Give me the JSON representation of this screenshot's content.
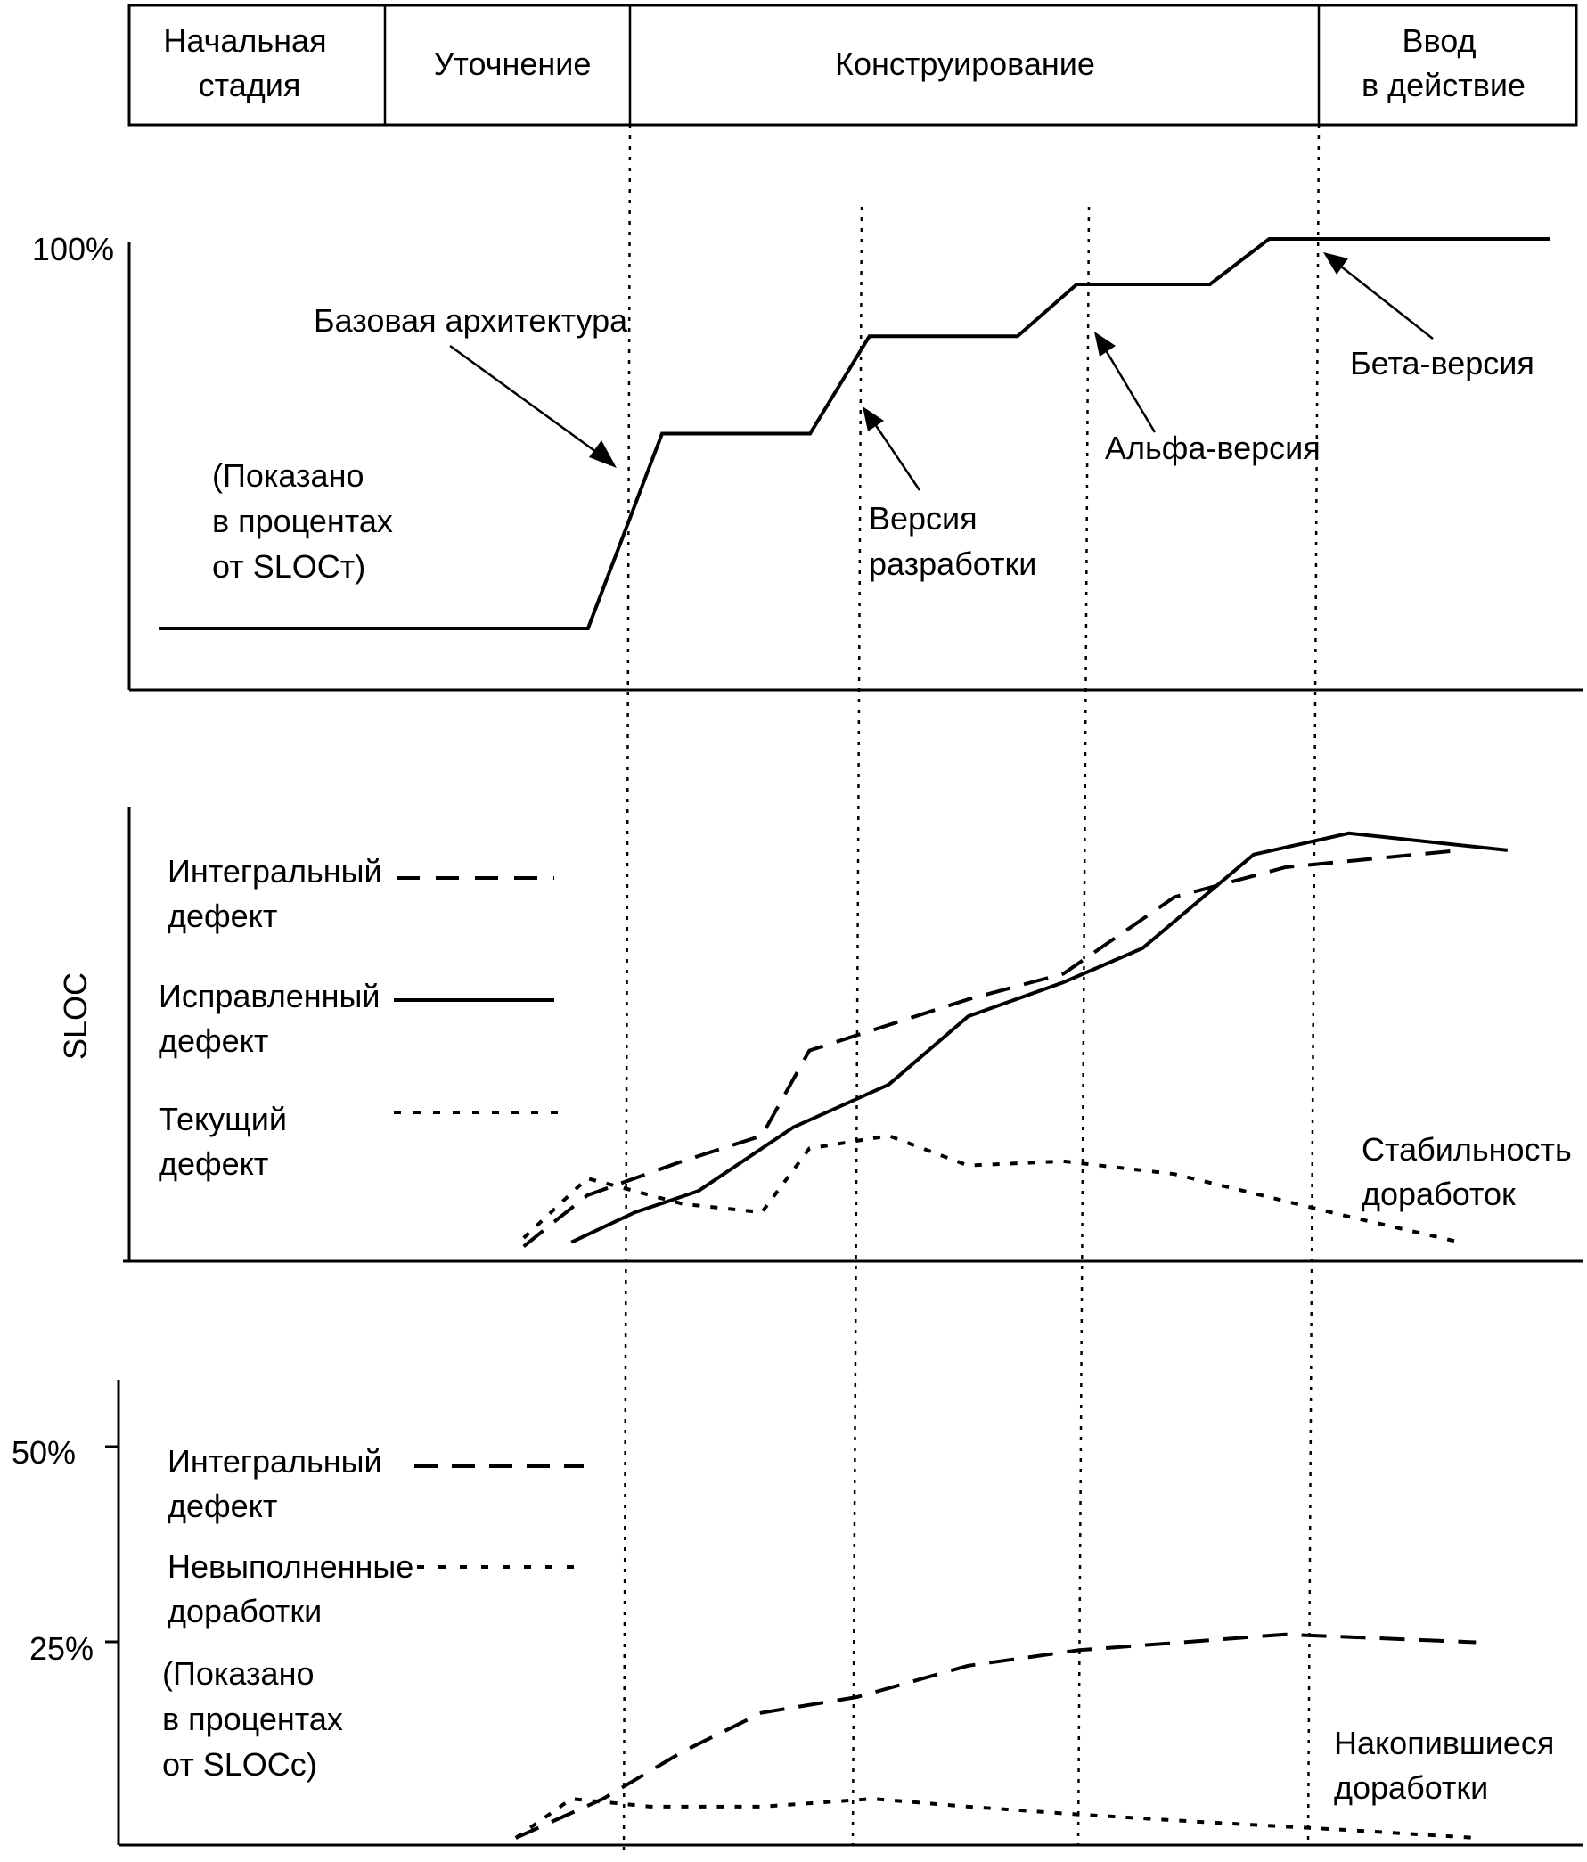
{
  "phases": [
    {
      "lines": [
        "Начальная",
        "стадия"
      ]
    },
    {
      "lines": [
        "Уточнение"
      ]
    },
    {
      "lines": [
        "Конструирование"
      ]
    },
    {
      "lines": [
        "Ввод",
        "в действие"
      ]
    }
  ],
  "chart_data": [
    {
      "type": "line",
      "title": "",
      "yticks": [
        "100%"
      ],
      "note": [
        "(Показано",
        "в процентах",
        "от SLOCт)"
      ],
      "series": [
        {
          "values": [
            [
              0.0,
              40
            ],
            [
              0.29,
              40
            ],
            [
              0.34,
              70
            ],
            [
              0.44,
              70
            ],
            [
              0.48,
              85
            ],
            [
              0.58,
              85
            ],
            [
              0.62,
              93
            ],
            [
              0.71,
              93
            ],
            [
              0.75,
              100
            ],
            [
              0.94,
              100
            ]
          ]
        }
      ],
      "annotations": [
        {
          "lines": [
            "Базовая архитектура"
          ]
        },
        {
          "lines": [
            "Версия",
            "разработки"
          ]
        },
        {
          "lines": [
            "Альфа-версия"
          ]
        },
        {
          "lines": [
            "Бета-версия"
          ]
        }
      ]
    },
    {
      "type": "line",
      "ylabel": "SLOC",
      "legend": [
        {
          "lines": [
            "Интегральный",
            "дефект"
          ],
          "style": "dashed"
        },
        {
          "lines": [
            "Исправленный",
            "дефект"
          ],
          "style": "solid"
        },
        {
          "lines": [
            "Текущий",
            "дефект"
          ],
          "style": "dotted"
        }
      ],
      "series": [
        {
          "style": "dashed",
          "values": [
            [
              0.33,
              2
            ],
            [
              0.37,
              14
            ],
            [
              0.43,
              22
            ],
            [
              0.48,
              28
            ],
            [
              0.51,
              48
            ],
            [
              0.56,
              54
            ],
            [
              0.61,
              60
            ],
            [
              0.67,
              66
            ],
            [
              0.74,
              84
            ],
            [
              0.81,
              91
            ],
            [
              0.92,
              95
            ]
          ]
        },
        {
          "style": "solid",
          "values": [
            [
              0.36,
              3
            ],
            [
              0.4,
              10
            ],
            [
              0.44,
              15
            ],
            [
              0.5,
              30
            ],
            [
              0.56,
              40
            ],
            [
              0.61,
              56
            ],
            [
              0.67,
              64
            ],
            [
              0.72,
              72
            ],
            [
              0.79,
              94
            ],
            [
              0.85,
              99
            ],
            [
              0.95,
              95
            ]
          ]
        },
        {
          "style": "dotted",
          "values": [
            [
              0.33,
              4
            ],
            [
              0.37,
              18
            ],
            [
              0.43,
              12
            ],
            [
              0.48,
              10
            ],
            [
              0.51,
              25
            ],
            [
              0.56,
              28
            ],
            [
              0.61,
              21
            ],
            [
              0.67,
              22
            ],
            [
              0.74,
              19
            ],
            [
              0.85,
              9
            ],
            [
              0.92,
              3
            ]
          ]
        }
      ],
      "annotations": [
        {
          "lines": [
            "Стабильность",
            "доработок"
          ]
        }
      ]
    },
    {
      "type": "line",
      "yticks": [
        "50%",
        "25%"
      ],
      "legend": [
        {
          "lines": [
            "Интегральный",
            "дефект"
          ],
          "style": "dashed"
        },
        {
          "lines": [
            "Невыполненные",
            "доработки"
          ],
          "style": "dotted"
        }
      ],
      "note": [
        "(Показано",
        "в процентах",
        "от SLOCс)"
      ],
      "series": [
        {
          "style": "dashed",
          "values": [
            [
              0.325,
              0
            ],
            [
              0.38,
              5
            ],
            [
              0.43,
              11
            ],
            [
              0.48,
              16
            ],
            [
              0.54,
              18
            ],
            [
              0.61,
              22
            ],
            [
              0.68,
              24
            ],
            [
              0.81,
              26
            ],
            [
              0.93,
              25
            ]
          ]
        },
        {
          "style": "dotted",
          "values": [
            [
              0.325,
              0
            ],
            [
              0.36,
              5
            ],
            [
              0.41,
              4
            ],
            [
              0.48,
              4
            ],
            [
              0.55,
              5
            ],
            [
              0.61,
              4
            ],
            [
              0.68,
              3
            ],
            [
              0.76,
              2
            ],
            [
              0.85,
              1
            ],
            [
              0.93,
              0
            ]
          ]
        }
      ],
      "annotations": [
        {
          "lines": [
            "Накопившиеся",
            "доработки"
          ]
        }
      ]
    }
  ]
}
